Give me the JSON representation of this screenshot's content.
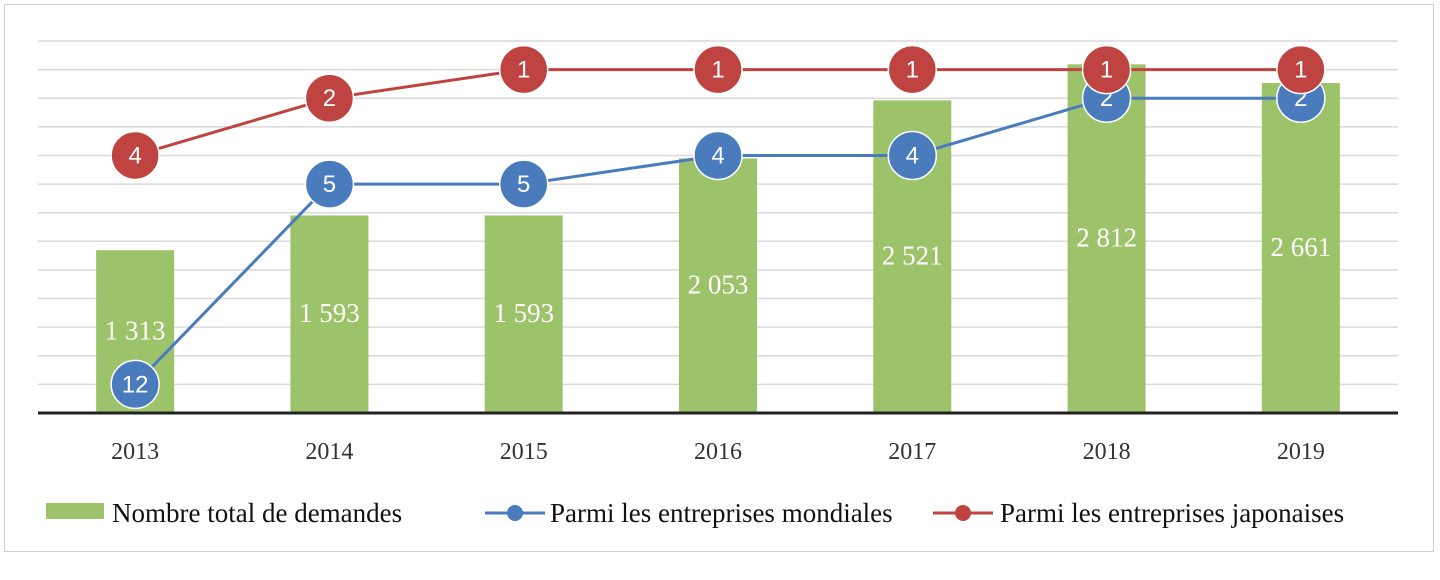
{
  "chart_data": {
    "type": "bar",
    "categories": [
      "2013",
      "2014",
      "2015",
      "2016",
      "2017",
      "2018",
      "2019"
    ],
    "bar_series": {
      "name": "Nombre total de demandes",
      "color": "#9dc36a",
      "values": [
        1313,
        1593,
        1593,
        2053,
        2521,
        2812,
        2661
      ],
      "labels": [
        "1 313",
        "1 593",
        "1 593",
        "2 053",
        "2 521",
        "2 812",
        "2 661"
      ],
      "ylim": [
        0,
        3000
      ]
    },
    "rank_series": [
      {
        "name": "Parmi les entreprises mondiales",
        "color": "#4a7bbd",
        "values": [
          12,
          5,
          5,
          4,
          4,
          2,
          2
        ],
        "labels": [
          "12",
          "5",
          "5",
          "4",
          "4",
          "2",
          "2"
        ]
      },
      {
        "name": "Parmi les entreprises japonaises",
        "color": "#bf4340",
        "values": [
          4,
          2,
          1,
          1,
          1,
          1,
          1
        ],
        "labels": [
          "4",
          "2",
          "1",
          "1",
          "1",
          "1",
          "1"
        ]
      }
    ],
    "rank_axis": {
      "ylim": [
        13,
        0
      ],
      "reversed": true
    },
    "legend_position": "bottom",
    "grid": true
  }
}
